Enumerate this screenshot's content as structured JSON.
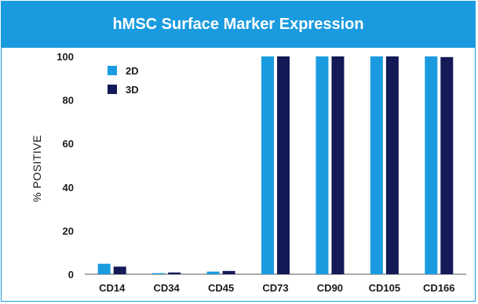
{
  "chart_data": {
    "type": "bar",
    "title": "hMSC Surface Marker Expression",
    "ylabel": "% POSITIVE",
    "xlabel": "",
    "categories": [
      "CD14",
      "CD34",
      "CD45",
      "CD73",
      "CD90",
      "CD105",
      "CD166"
    ],
    "series": [
      {
        "name": "2D",
        "color": "#1a9be0",
        "values": [
          4.8,
          0.5,
          1.2,
          100,
          100,
          100,
          100
        ]
      },
      {
        "name": "3D",
        "color": "#141a57",
        "values": [
          3.5,
          0.8,
          1.5,
          100,
          100,
          100,
          99.7
        ]
      }
    ],
    "ylim": [
      0,
      100
    ],
    "yticks": [
      0,
      20,
      40,
      60,
      80,
      100
    ],
    "legend_position": "top-left",
    "grid": false
  }
}
